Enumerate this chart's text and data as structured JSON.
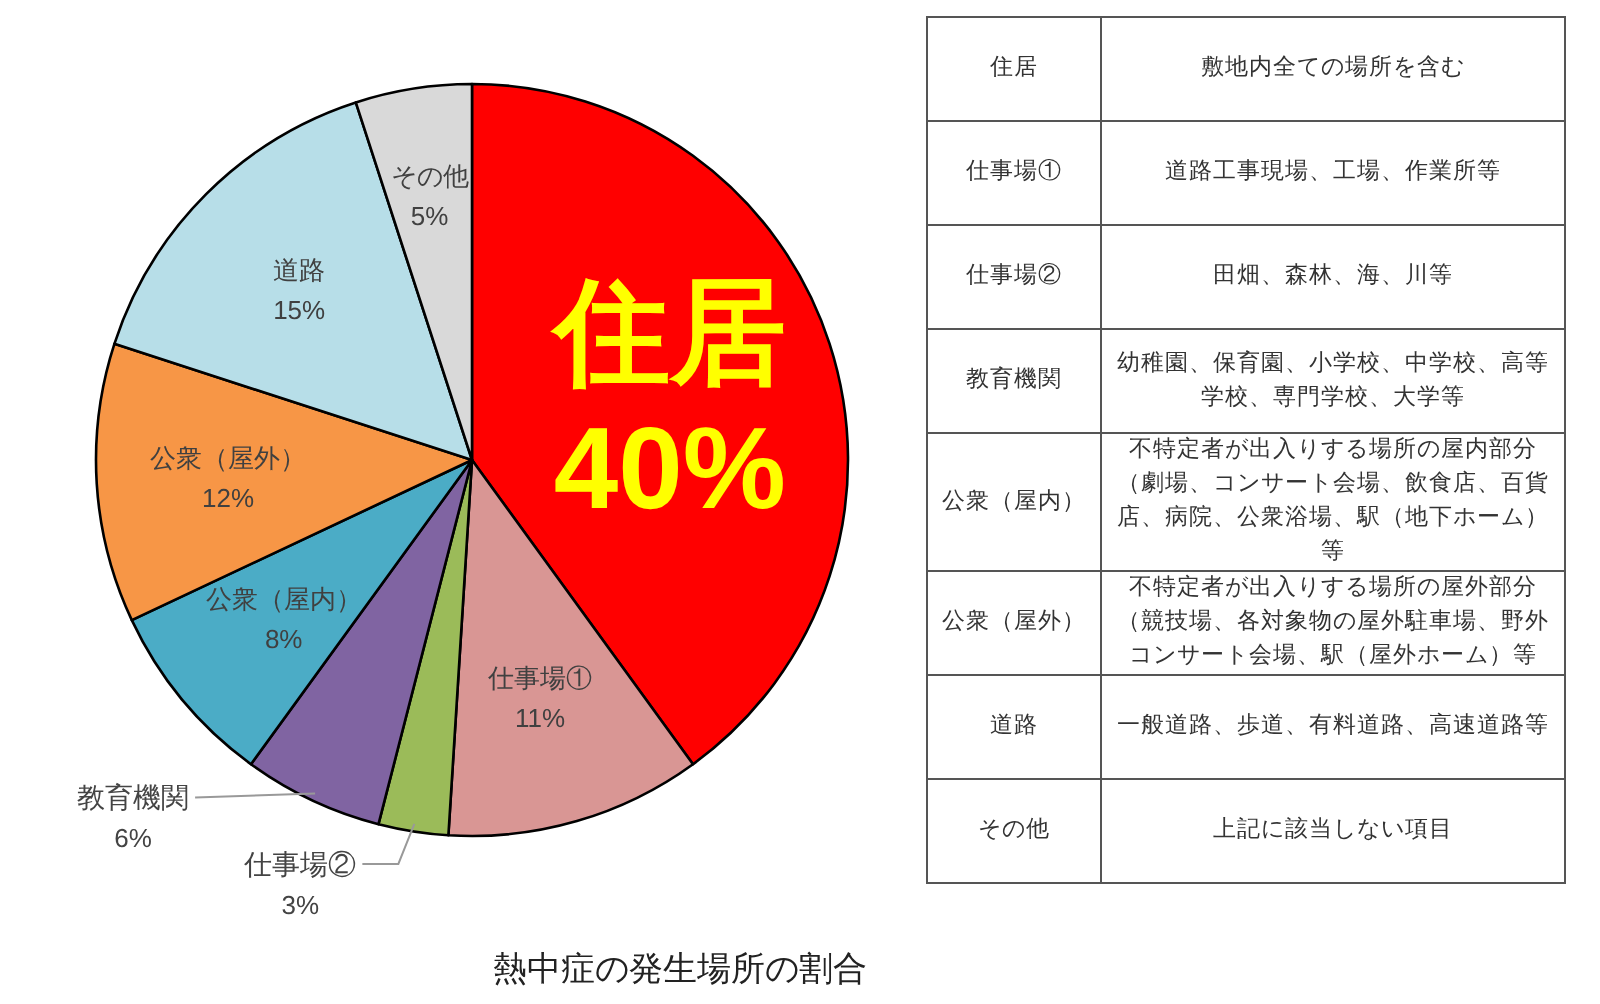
{
  "chart_data": [
    {
      "type": "pie",
      "title": "熱中症の発生場所の割合",
      "categories": [
        "住居",
        "仕事場①",
        "仕事場②",
        "教育機関",
        "公衆（屋内）",
        "公衆（屋外）",
        "道路",
        "その他"
      ],
      "values": [
        40,
        11,
        3,
        6,
        8,
        12,
        15,
        5
      ],
      "value_labels": [
        "40%",
        "11%",
        "3%",
        "6%",
        "8%",
        "12%",
        "15%",
        "5%"
      ],
      "colors": [
        "#ff0000",
        "#d99694",
        "#9bbb59",
        "#8064a2",
        "#4bacc6",
        "#f79646",
        "#b7dee8",
        "#d9d9d9"
      ]
    },
    {
      "type": "other",
      "categories": [
        "住居",
        "仕事場①",
        "仕事場②",
        "教育機関",
        "公衆（屋内）",
        "公衆（屋外）",
        "道路",
        "その他"
      ],
      "annotations": [
        "敷地内全ての場所を含む",
        "道路工事現場、工場、作業所等",
        "田畑、森林、海、川等",
        "幼稚園、保育園、小学校、中学校、高等学校、専門学校、大学等",
        "不特定者が出入りする場所の屋内部分（劇場、コンサート会場、飲食店、百貨店、病院、公衆浴場、駅（地下ホーム）等",
        "不特定者が出入りする場所の屋外部分（競技場、各対象物の屋外駐車場、野外コンサート会場、駅（屋外ホーム）等",
        "一般道路、歩道、有料道路、高速道路等",
        "上記に該当しない項目"
      ]
    }
  ]
}
